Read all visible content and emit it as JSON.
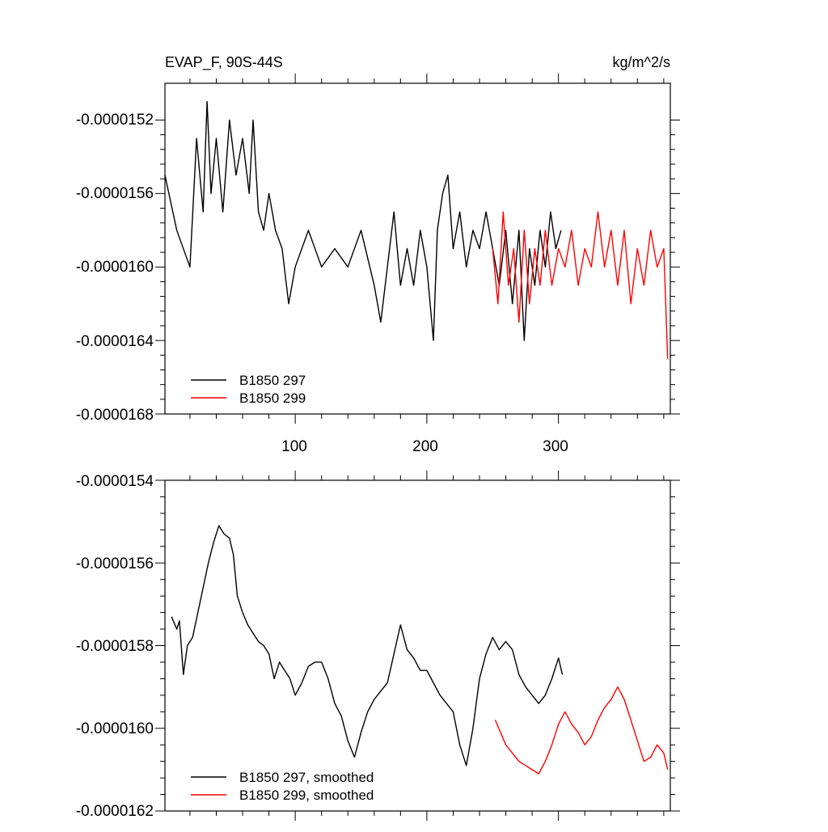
{
  "chart_data": [
    {
      "type": "line",
      "panel": "top",
      "title": "EVAP_F, 90S-44S",
      "units": "kg/m^2/s",
      "xlim": [
        1,
        385
      ],
      "xticks": [
        100,
        200,
        300
      ],
      "xtick_labels": [
        "100",
        "200",
        "300"
      ],
      "ylim": [
        -1.68e-05,
        -1.5e-05
      ],
      "yticks": [
        -1.52e-05,
        -1.56e-05,
        -1.6e-05,
        -1.64e-05,
        -1.68e-05
      ],
      "ytick_labels": [
        "-0.0000152",
        "-0.0000156",
        "-0.0000160",
        "-0.0000164",
        "-0.0000168"
      ],
      "legend_position": "bottom-left",
      "series": [
        {
          "name": "B1850 297",
          "color": "#000000",
          "x": [
            1,
            10,
            20,
            25,
            30,
            33,
            36,
            40,
            45,
            50,
            55,
            60,
            65,
            68,
            72,
            76,
            80,
            85,
            90,
            95,
            100,
            110,
            120,
            130,
            140,
            150,
            160,
            165,
            170,
            175,
            180,
            185,
            190,
            195,
            200,
            205,
            208,
            212,
            216,
            220,
            225,
            230,
            235,
            240,
            245,
            250,
            255,
            260,
            265,
            270,
            274,
            278,
            282,
            286,
            290,
            294,
            298,
            302
          ],
          "values": [
            -1.55e-05,
            -1.58e-05,
            -1.6e-05,
            -1.53e-05,
            -1.57e-05,
            -1.51e-05,
            -1.56e-05,
            -1.53e-05,
            -1.57e-05,
            -1.52e-05,
            -1.55e-05,
            -1.53e-05,
            -1.56e-05,
            -1.52e-05,
            -1.57e-05,
            -1.58e-05,
            -1.56e-05,
            -1.58e-05,
            -1.59e-05,
            -1.62e-05,
            -1.6e-05,
            -1.58e-05,
            -1.6e-05,
            -1.59e-05,
            -1.6e-05,
            -1.58e-05,
            -1.61e-05,
            -1.63e-05,
            -1.6e-05,
            -1.57e-05,
            -1.61e-05,
            -1.59e-05,
            -1.61e-05,
            -1.58e-05,
            -1.6e-05,
            -1.64e-05,
            -1.58e-05,
            -1.56e-05,
            -1.55e-05,
            -1.59e-05,
            -1.57e-05,
            -1.6e-05,
            -1.58e-05,
            -1.59e-05,
            -1.57e-05,
            -1.59e-05,
            -1.61e-05,
            -1.58e-05,
            -1.62e-05,
            -1.58e-05,
            -1.64e-05,
            -1.59e-05,
            -1.61e-05,
            -1.58e-05,
            -1.6e-05,
            -1.57e-05,
            -1.59e-05,
            -1.58e-05
          ]
        },
        {
          "name": "B1850 299",
          "color": "#ff0000",
          "x": [
            250,
            254,
            258,
            262,
            266,
            270,
            274,
            278,
            282,
            286,
            290,
            295,
            300,
            305,
            310,
            315,
            320,
            325,
            330,
            335,
            340,
            345,
            350,
            355,
            360,
            365,
            370,
            375,
            380,
            383
          ],
          "values": [
            -1.59e-05,
            -1.62e-05,
            -1.57e-05,
            -1.61e-05,
            -1.59e-05,
            -1.63e-05,
            -1.58e-05,
            -1.62e-05,
            -1.59e-05,
            -1.61e-05,
            -1.58e-05,
            -1.61e-05,
            -1.59e-05,
            -1.6e-05,
            -1.58e-05,
            -1.61e-05,
            -1.59e-05,
            -1.6e-05,
            -1.57e-05,
            -1.6e-05,
            -1.58e-05,
            -1.61e-05,
            -1.58e-05,
            -1.62e-05,
            -1.59e-05,
            -1.61e-05,
            -1.58e-05,
            -1.6e-05,
            -1.59e-05,
            -1.65e-05
          ]
        }
      ]
    },
    {
      "type": "line",
      "panel": "bottom",
      "title": "",
      "xlim": [
        1,
        385
      ],
      "xticks": [
        100,
        200,
        300
      ],
      "ylim": [
        -1.62e-05,
        -1.54e-05
      ],
      "yticks": [
        -1.54e-05,
        -1.56e-05,
        -1.58e-05,
        -1.6e-05,
        -1.62e-05
      ],
      "ytick_labels": [
        "-0.0000154",
        "-0.0000156",
        "-0.0000158",
        "-0.0000160",
        "-0.0000162"
      ],
      "legend_position": "bottom-left",
      "series": [
        {
          "name": "B1850 297, smoothed",
          "color": "#000000",
          "x": [
            6,
            10,
            12,
            15,
            18,
            22,
            26,
            30,
            34,
            38,
            42,
            46,
            50,
            53,
            56,
            60,
            64,
            68,
            72,
            76,
            80,
            84,
            88,
            92,
            96,
            100,
            105,
            110,
            115,
            120,
            125,
            130,
            135,
            140,
            145,
            150,
            155,
            160,
            165,
            170,
            175,
            180,
            185,
            190,
            195,
            200,
            205,
            210,
            215,
            220,
            225,
            230,
            235,
            240,
            245,
            250,
            255,
            260,
            265,
            270,
            275,
            280,
            285,
            290,
            295,
            300,
            303
          ],
          "values": [
            -1.573e-05,
            -1.576e-05,
            -1.574e-05,
            -1.587e-05,
            -1.58e-05,
            -1.578e-05,
            -1.572e-05,
            -1.566e-05,
            -1.56e-05,
            -1.555e-05,
            -1.551e-05,
            -1.553e-05,
            -1.554e-05,
            -1.558e-05,
            -1.568e-05,
            -1.572e-05,
            -1.575e-05,
            -1.577e-05,
            -1.579e-05,
            -1.58e-05,
            -1.582e-05,
            -1.588e-05,
            -1.584e-05,
            -1.586e-05,
            -1.588e-05,
            -1.592e-05,
            -1.589e-05,
            -1.585e-05,
            -1.584e-05,
            -1.584e-05,
            -1.588e-05,
            -1.594e-05,
            -1.597e-05,
            -1.603e-05,
            -1.607e-05,
            -1.601e-05,
            -1.596e-05,
            -1.593e-05,
            -1.591e-05,
            -1.589e-05,
            -1.582e-05,
            -1.575e-05,
            -1.581e-05,
            -1.583e-05,
            -1.586e-05,
            -1.586e-05,
            -1.589e-05,
            -1.592e-05,
            -1.594e-05,
            -1.596e-05,
            -1.604e-05,
            -1.609e-05,
            -1.6e-05,
            -1.588e-05,
            -1.582e-05,
            -1.578e-05,
            -1.581e-05,
            -1.579e-05,
            -1.581e-05,
            -1.587e-05,
            -1.59e-05,
            -1.592e-05,
            -1.594e-05,
            -1.592e-05,
            -1.588e-05,
            -1.583e-05,
            -1.587e-05
          ]
        },
        {
          "name": "B1850 299, smoothed",
          "color": "#ff0000",
          "x": [
            252,
            256,
            260,
            265,
            270,
            275,
            280,
            285,
            290,
            295,
            300,
            305,
            310,
            315,
            320,
            325,
            330,
            335,
            340,
            345,
            350,
            355,
            360,
            365,
            370,
            375,
            380,
            383
          ],
          "values": [
            -1.598e-05,
            -1.601e-05,
            -1.604e-05,
            -1.606e-05,
            -1.608e-05,
            -1.609e-05,
            -1.61e-05,
            -1.611e-05,
            -1.608e-05,
            -1.604e-05,
            -1.599e-05,
            -1.596e-05,
            -1.599e-05,
            -1.601e-05,
            -1.604e-05,
            -1.602e-05,
            -1.598e-05,
            -1.595e-05,
            -1.593e-05,
            -1.59e-05,
            -1.593e-05,
            -1.598e-05,
            -1.603e-05,
            -1.608e-05,
            -1.607e-05,
            -1.604e-05,
            -1.606e-05,
            -1.61e-05
          ]
        }
      ]
    }
  ]
}
